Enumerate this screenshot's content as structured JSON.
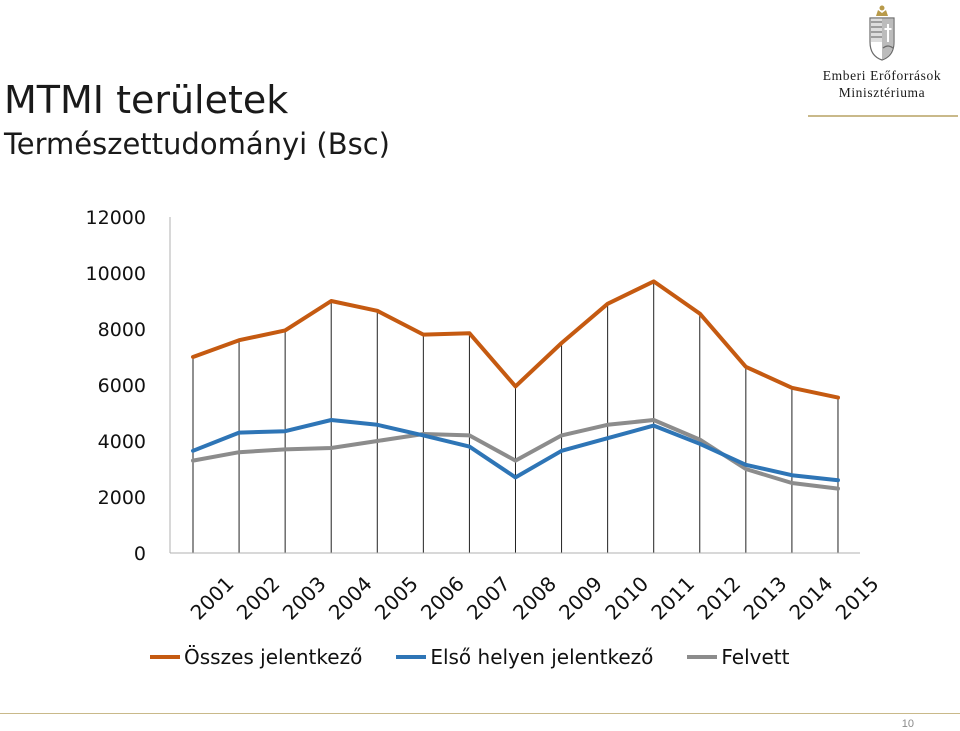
{
  "slide": {
    "title": "MTMI területek",
    "subtitle": "Természettudományi (Bsc)",
    "page_number": "10"
  },
  "logo": {
    "line1": "Emberi Erőforrások",
    "line2": "Minisztériuma",
    "icon": "hungarian-coat-of-arms-icon"
  },
  "colors": {
    "series_1": "#c55a11",
    "series_2": "#2e75b6",
    "series_3": "#8c8c8c",
    "accent_rule": "#c9b98a"
  },
  "chart_data": {
    "type": "line",
    "title": "",
    "xlabel": "",
    "ylabel": "",
    "ylim": [
      0,
      12000
    ],
    "y_ticks": [
      "0",
      "2000",
      "4000",
      "6000",
      "8000",
      "10000",
      "12000"
    ],
    "categories": [
      "2001",
      "2002",
      "2003",
      "2004",
      "2005",
      "2006",
      "2007",
      "2008",
      "2009",
      "2010",
      "2011",
      "2012",
      "2013",
      "2014",
      "2015"
    ],
    "grid": "vertical drop lines at each category",
    "legend_position": "bottom",
    "series": [
      {
        "name": "Összes jelentkező",
        "color": "#c55a11",
        "values": [
          7000,
          7600,
          7950,
          9000,
          8650,
          7800,
          7850,
          5950,
          7500,
          8900,
          9700,
          8550,
          6650,
          5900,
          5550
        ]
      },
      {
        "name": "Első helyen jelentkező",
        "color": "#2e75b6",
        "values": [
          3650,
          4300,
          4350,
          4750,
          4580,
          4200,
          3800,
          2700,
          3650,
          4100,
          4550,
          3900,
          3150,
          2780,
          2600
        ]
      },
      {
        "name": "Felvett",
        "color": "#8c8c8c",
        "values": [
          3300,
          3600,
          3700,
          3750,
          4000,
          4250,
          4200,
          3300,
          4200,
          4580,
          4750,
          4050,
          3000,
          2500,
          2300
        ]
      }
    ]
  }
}
